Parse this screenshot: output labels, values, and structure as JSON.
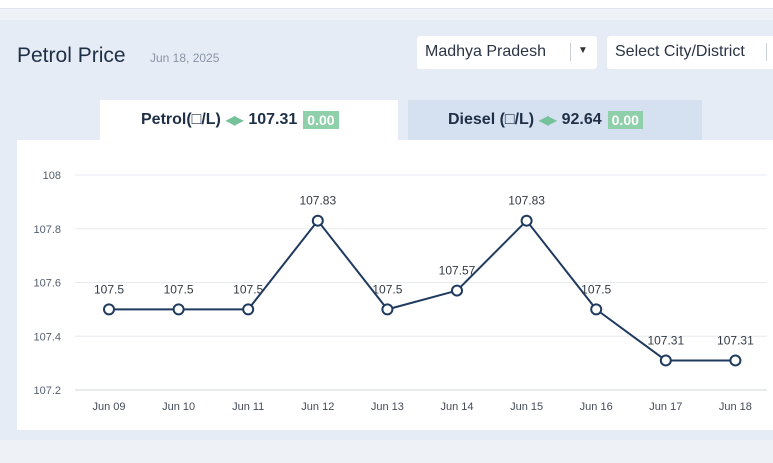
{
  "header": {
    "title": "Petrol Price",
    "date": "Jun 18, 2025"
  },
  "filters": {
    "state": "Madhya Pradesh",
    "city": "Select City/District"
  },
  "tabs": {
    "petrol": {
      "label": "Petrol(□/L)",
      "price": "107.31",
      "change": "0.00"
    },
    "diesel": {
      "label": "Diesel (□/L)",
      "price": "92.64",
      "change": "0.00"
    }
  },
  "icons": {
    "state_dropdown": "chevron-down-icon",
    "petrol_change": "up-down-arrows-icon",
    "diesel_change": "up-down-arrows-icon"
  },
  "colors": {
    "line": "#1f3a5f",
    "change_badge": "#8fcfaa",
    "active_tab": "#ffffff",
    "inactive_tab": "#d5e0f1"
  },
  "chart_data": {
    "type": "line",
    "title": "",
    "xlabel": "",
    "ylabel": "",
    "categories": [
      "Jun 09",
      "Jun 10",
      "Jun 11",
      "Jun 12",
      "Jun 13",
      "Jun 14",
      "Jun 15",
      "Jun 16",
      "Jun 17",
      "Jun 18"
    ],
    "values": [
      107.5,
      107.5,
      107.5,
      107.83,
      107.5,
      107.57,
      107.83,
      107.5,
      107.31,
      107.31
    ],
    "point_labels": [
      "107.5",
      "107.5",
      "107.5",
      "107.83",
      "107.5",
      "107.57",
      "107.83",
      "107.5",
      "107.31",
      "107.31"
    ],
    "ylim": [
      107.2,
      108
    ],
    "yticks": [
      107.2,
      107.4,
      107.6,
      107.8,
      108
    ],
    "ytick_labels": [
      "107.2",
      "107.4",
      "107.6",
      "107.8",
      "108"
    ],
    "grid": true,
    "legend": "none"
  }
}
